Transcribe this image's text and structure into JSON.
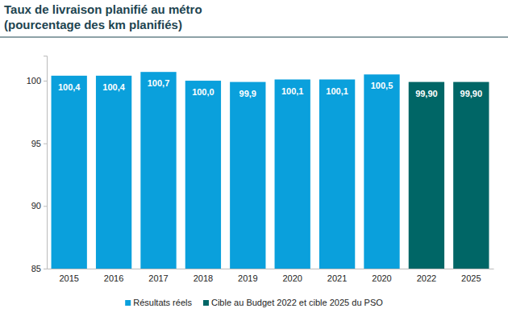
{
  "chart_data": {
    "type": "bar",
    "title": "Taux de livraison planifié au métro",
    "subtitle": "(pourcentage des km planifiés)",
    "categories": [
      "2015",
      "2016",
      "2017",
      "2018",
      "2019",
      "2020",
      "2021",
      "2020",
      "2022",
      "2025"
    ],
    "series": [
      {
        "name": "Résultats réels",
        "color": "#0aa0dc",
        "values": [
          100.4,
          100.4,
          100.7,
          100.0,
          99.9,
          100.1,
          100.1,
          100.5,
          null,
          null
        ],
        "value_labels": [
          "100,4",
          "100,4",
          "100,7",
          "100,0",
          "99,9",
          "100,1",
          "100,1",
          "100,5",
          null,
          null
        ]
      },
      {
        "name": "Cible au Budget 2022 et cible 2025 du PSO",
        "color": "#006666",
        "values": [
          null,
          null,
          null,
          null,
          null,
          null,
          null,
          null,
          99.9,
          99.9
        ],
        "value_labels": [
          null,
          null,
          null,
          null,
          null,
          null,
          null,
          null,
          "99,90",
          "99,90"
        ]
      }
    ],
    "ylim": [
      85,
      102
    ],
    "yticks": [
      85,
      90,
      95,
      100
    ],
    "grid": false,
    "data_labels": true,
    "legend": "bottom"
  }
}
